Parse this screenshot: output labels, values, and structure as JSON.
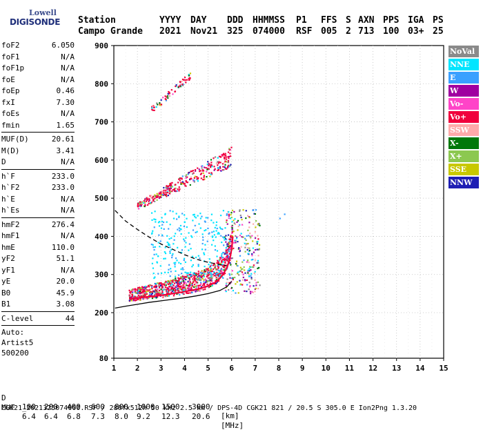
{
  "logo": {
    "line1": "Lowell",
    "line2": "DIGISONDE"
  },
  "header": {
    "labels": [
      "Station",
      "YYYY",
      "DAY",
      "DDD",
      "HHMMSS",
      "P1",
      "FFS",
      "S",
      "AXN",
      "PPS",
      "IGA",
      "PS"
    ],
    "values": [
      "Campo Grande",
      "2021",
      "Nov21",
      "325",
      "074000",
      "RSF",
      "005",
      "2",
      "713",
      "100",
      "03+",
      "25"
    ]
  },
  "params": {
    "group1": [
      {
        "k": "foF2",
        "v": "6.050"
      },
      {
        "k": "foF1",
        "v": "N/A"
      },
      {
        "k": "foF1p",
        "v": "N/A"
      },
      {
        "k": "foE",
        "v": "N/A"
      },
      {
        "k": "foEp",
        "v": "0.46"
      },
      {
        "k": "fxI",
        "v": "7.30"
      },
      {
        "k": "foEs",
        "v": "N/A"
      },
      {
        "k": "fmin",
        "v": "1.65"
      }
    ],
    "group2": [
      {
        "k": "MUF(D)",
        "v": "20.61"
      },
      {
        "k": "M(D)",
        "v": "3.41"
      },
      {
        "k": "D",
        "v": "N/A"
      }
    ],
    "group3": [
      {
        "k": "h`F",
        "v": "233.0"
      },
      {
        "k": "h`F2",
        "v": "233.0"
      },
      {
        "k": "h`E",
        "v": "N/A"
      },
      {
        "k": "h`Es",
        "v": "N/A"
      }
    ],
    "group4": [
      {
        "k": "hmF2",
        "v": "276.4"
      },
      {
        "k": "hmF1",
        "v": "N/A"
      },
      {
        "k": "hmE",
        "v": "110.0"
      },
      {
        "k": "yF2",
        "v": "51.1"
      },
      {
        "k": "yF1",
        "v": "N/A"
      },
      {
        "k": "yE",
        "v": "20.0"
      },
      {
        "k": "B0",
        "v": "45.9"
      },
      {
        "k": "B1",
        "v": "3.08"
      }
    ],
    "group5": [
      {
        "k": "C-level",
        "v": "44"
      }
    ],
    "autoscale": {
      "line1": "Auto:",
      "line2": "Artist5",
      "line3": "500200"
    }
  },
  "legend": [
    {
      "label": "NoVal",
      "color": "#8a8a8a"
    },
    {
      "label": "NNE",
      "color": "#00e5ff"
    },
    {
      "label": "E",
      "color": "#3aa0ff"
    },
    {
      "label": "W",
      "color": "#a000a0"
    },
    {
      "label": "Vo-",
      "color": "#ff44c8"
    },
    {
      "label": "Vo+",
      "color": "#f0003c"
    },
    {
      "label": "SSW",
      "color": "#ffaaaa"
    },
    {
      "label": "X-",
      "color": "#00780a"
    },
    {
      "label": "X+",
      "color": "#8cc850"
    },
    {
      "label": "SSE",
      "color": "#c8c800"
    },
    {
      "label": "NNW",
      "color": "#1e1eb4"
    }
  ],
  "footer": {
    "row_d_label": "D",
    "row_d_values": [
      "100",
      "200",
      "400",
      "600",
      "800",
      "1000",
      "1500",
      "3000"
    ],
    "row_d_unit": "[km]",
    "row_muf_label": "MUF",
    "row_muf_values": [
      "6.4",
      "6.4",
      "6.8",
      "7.3",
      "8.0",
      "9.2",
      "12.3",
      "20.6"
    ],
    "row_muf_unit": "[MHz]",
    "status": "CGK21_2021325074000.RSF / 280fx512h 50 kHz 2.5 km / DPS-4D CGK21 821 / 20.5 S 305.0 E Ion2Png 1.3.20"
  },
  "chart_data": {
    "type": "scatter",
    "title": "",
    "xlabel": "",
    "ylabel": "",
    "xlim": [
      1,
      15
    ],
    "ylim": [
      80,
      900
    ],
    "x_ticks": [
      1,
      2,
      3,
      4,
      5,
      6,
      7,
      8,
      9,
      10,
      11,
      12,
      13,
      14,
      15
    ],
    "y_ticks": [
      80,
      200,
      300,
      400,
      500,
      600,
      700,
      800,
      900
    ],
    "grid": true,
    "series": [
      {
        "color": "#000000",
        "style": "solid",
        "x": [
          1.05,
          1.5,
          2.0,
          2.5,
          3.0,
          3.5,
          4.0,
          4.5,
          5.0,
          5.5,
          5.8,
          6.0
        ],
        "y": [
          212,
          217,
          222,
          227,
          231,
          235,
          239,
          244,
          250,
          258,
          268,
          282
        ]
      },
      {
        "color": "#000000",
        "style": "dashed",
        "x": [
          1.05,
          1.5,
          2.0,
          2.5,
          3.0,
          3.5,
          4.0,
          4.5,
          5.0,
          5.5,
          5.9
        ],
        "y": [
          468,
          440,
          418,
          398,
          380,
          366,
          352,
          340,
          332,
          326,
          322
        ]
      },
      {
        "color": "#f0003c",
        "style": "solid",
        "x": [
          1.65,
          2.2,
          2.8,
          3.4,
          4.0,
          4.6,
          5.0,
          5.3,
          5.5,
          5.65,
          5.8,
          5.9,
          5.97,
          6.02,
          6.05
        ],
        "y": [
          236,
          240,
          244,
          249,
          255,
          262,
          270,
          279,
          290,
          302,
          318,
          336,
          355,
          378,
          400
        ]
      }
    ],
    "echo_regions": [
      {
        "x": [
          1.65,
          6.0
        ],
        "y": [
          230,
          300
        ],
        "note": "F-trace"
      },
      {
        "x": [
          2.0,
          6.0
        ],
        "y": [
          470,
          610
        ],
        "note": "second-hop"
      },
      {
        "x": [
          2.6,
          4.3
        ],
        "y": [
          720,
          820
        ],
        "note": "third-hop"
      }
    ]
  }
}
